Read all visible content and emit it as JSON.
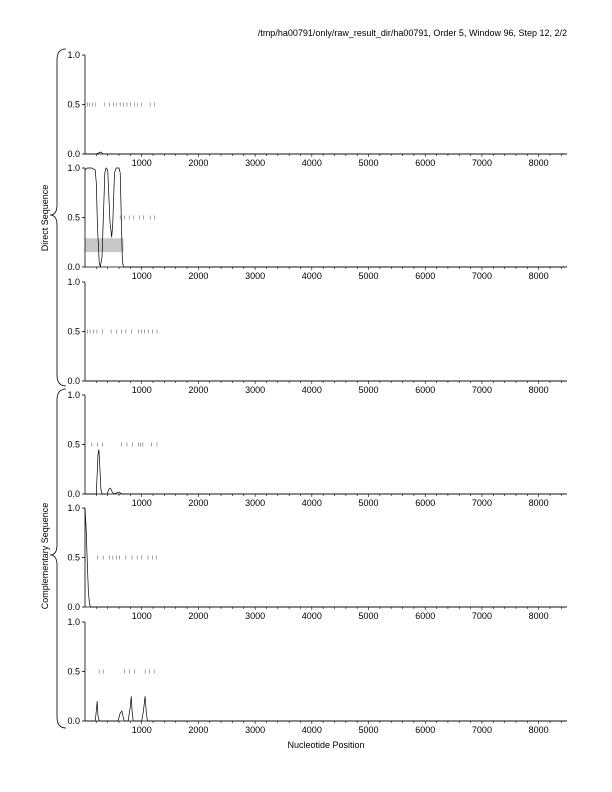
{
  "header": "/tmp/ha00791/only/raw_result_dir/ha00791, Order 5, Window 96, Step 12, 2/2",
  "x_axis_label": "Nucleotide Position",
  "group_labels": [
    "Direct Sequence",
    "Complementary Sequence"
  ],
  "chart_data": {
    "type": "line",
    "xlabel": "Nucleotide Position",
    "xlim": [
      0,
      8500
    ],
    "x_ticks": [
      "1000",
      "2000",
      "3000",
      "4000",
      "5000",
      "6000",
      "7000",
      "8000"
    ],
    "ylim": [
      0,
      1
    ],
    "y_ticks": [
      "0.0",
      "0.5",
      "1.0"
    ],
    "groups": [
      {
        "label": "Direct Sequence",
        "panels": [
          0,
          1,
          2
        ]
      },
      {
        "label": "Complementary Sequence",
        "panels": [
          3,
          4,
          5
        ]
      }
    ],
    "panels": [
      {
        "marks_y": 0.5,
        "marks_x": [
          40,
          80,
          130,
          180,
          350,
          430,
          500,
          560,
          620,
          680,
          740,
          800,
          870,
          930,
          1000,
          1150,
          1230
        ],
        "curve": [
          [
            0,
            0
          ],
          [
            200,
            0
          ],
          [
            240,
            0.01
          ],
          [
            280,
            0.02
          ],
          [
            320,
            0
          ],
          [
            8500,
            0
          ]
        ]
      },
      {
        "marks_y": 0.5,
        "marks_x": [
          620,
          700,
          780,
          860,
          960,
          1030,
          1150,
          1230
        ],
        "highlight": {
          "x": [
            0,
            680
          ],
          "y": [
            0.15,
            0.29
          ]
        },
        "curve": [
          [
            0,
            0.98
          ],
          [
            40,
            1.0
          ],
          [
            120,
            1.0
          ],
          [
            180,
            0.98
          ],
          [
            200,
            0.85
          ],
          [
            220,
            0.4
          ],
          [
            250,
            0.05
          ],
          [
            270,
            0
          ],
          [
            300,
            0.1
          ],
          [
            330,
            0.6
          ],
          [
            350,
            0.95
          ],
          [
            370,
            1.0
          ],
          [
            400,
            0.98
          ],
          [
            440,
            0.45
          ],
          [
            470,
            0.3
          ],
          [
            490,
            0.45
          ],
          [
            520,
            0.95
          ],
          [
            550,
            1.0
          ],
          [
            600,
            1.0
          ],
          [
            620,
            0.95
          ],
          [
            640,
            0.5
          ],
          [
            660,
            0.05
          ],
          [
            680,
            0
          ],
          [
            8500,
            0
          ]
        ]
      },
      {
        "marks_y": 0.5,
        "marks_x": [
          40,
          90,
          150,
          210,
          310,
          460,
          560,
          640,
          720,
          820,
          940,
          1000,
          1050,
          1120,
          1190,
          1270
        ],
        "curve": [
          [
            0,
            0
          ],
          [
            8500,
            0
          ]
        ]
      },
      {
        "marks_y": 0.5,
        "marks_x": [
          120,
          220,
          310,
          640,
          740,
          840,
          940,
          980,
          1020,
          1170,
          1270
        ],
        "curve": [
          [
            0,
            0
          ],
          [
            200,
            0
          ],
          [
            230,
            0.4
          ],
          [
            245,
            0.45
          ],
          [
            260,
            0.3
          ],
          [
            280,
            0.05
          ],
          [
            300,
            0
          ],
          [
            390,
            0
          ],
          [
            420,
            0.05
          ],
          [
            450,
            0.06
          ],
          [
            480,
            0.02
          ],
          [
            510,
            0
          ],
          [
            600,
            0.02
          ],
          [
            650,
            0
          ],
          [
            8500,
            0
          ]
        ]
      },
      {
        "marks_y": 0.5,
        "marks_x": [
          220,
          320,
          430,
          490,
          560,
          610,
          720,
          830,
          920,
          1000,
          1110,
          1190,
          1260
        ],
        "curve": [
          [
            0,
            1.0
          ],
          [
            20,
            0.8
          ],
          [
            40,
            0.45
          ],
          [
            60,
            0.15
          ],
          [
            80,
            0.03
          ],
          [
            100,
            0
          ],
          [
            8500,
            0
          ]
        ]
      },
      {
        "marks_y": 0.5,
        "marks_x": [
          250,
          320,
          700,
          780,
          870,
          1060,
          1140,
          1220
        ],
        "curve": [
          [
            0,
            0
          ],
          [
            180,
            0
          ],
          [
            200,
            0.1
          ],
          [
            215,
            0.2
          ],
          [
            230,
            0.05
          ],
          [
            250,
            0
          ],
          [
            580,
            0
          ],
          [
            620,
            0.08
          ],
          [
            650,
            0.1
          ],
          [
            680,
            0.02
          ],
          [
            700,
            0
          ],
          [
            760,
            0
          ],
          [
            800,
            0.15
          ],
          [
            815,
            0.25
          ],
          [
            830,
            0.1
          ],
          [
            850,
            0
          ],
          [
            1000,
            0
          ],
          [
            1030,
            0.1
          ],
          [
            1060,
            0.25
          ],
          [
            1080,
            0.1
          ],
          [
            1100,
            0
          ],
          [
            8500,
            0
          ]
        ]
      }
    ]
  }
}
